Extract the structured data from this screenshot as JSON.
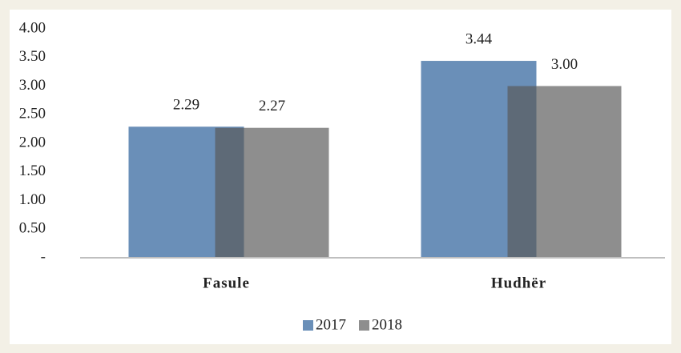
{
  "chart_data": {
    "type": "bar",
    "categories": [
      "Fasule",
      "Hudhër"
    ],
    "series": [
      {
        "name": "2017",
        "color": "#6a8fb8",
        "values": [
          2.29,
          3.44
        ],
        "value_labels": [
          "2.29",
          "3.44"
        ]
      },
      {
        "name": "2018",
        "color": "#595959",
        "values": [
          2.27,
          3.0
        ],
        "value_labels": [
          "2.27",
          "3.00"
        ]
      }
    ],
    "ylim": [
      0,
      4
    ],
    "yticks": [
      {
        "value": 0,
        "label": "-"
      },
      {
        "value": 0.5,
        "label": "0.50"
      },
      {
        "value": 1,
        "label": "1.00"
      },
      {
        "value": 1.5,
        "label": "1.50"
      },
      {
        "value": 2,
        "label": "2.00"
      },
      {
        "value": 2.5,
        "label": "2.50"
      },
      {
        "value": 3,
        "label": "3.00"
      },
      {
        "value": 3.5,
        "label": "3.50"
      },
      {
        "value": 4,
        "label": "4.00"
      }
    ],
    "grid": false,
    "legend": "bottom"
  }
}
